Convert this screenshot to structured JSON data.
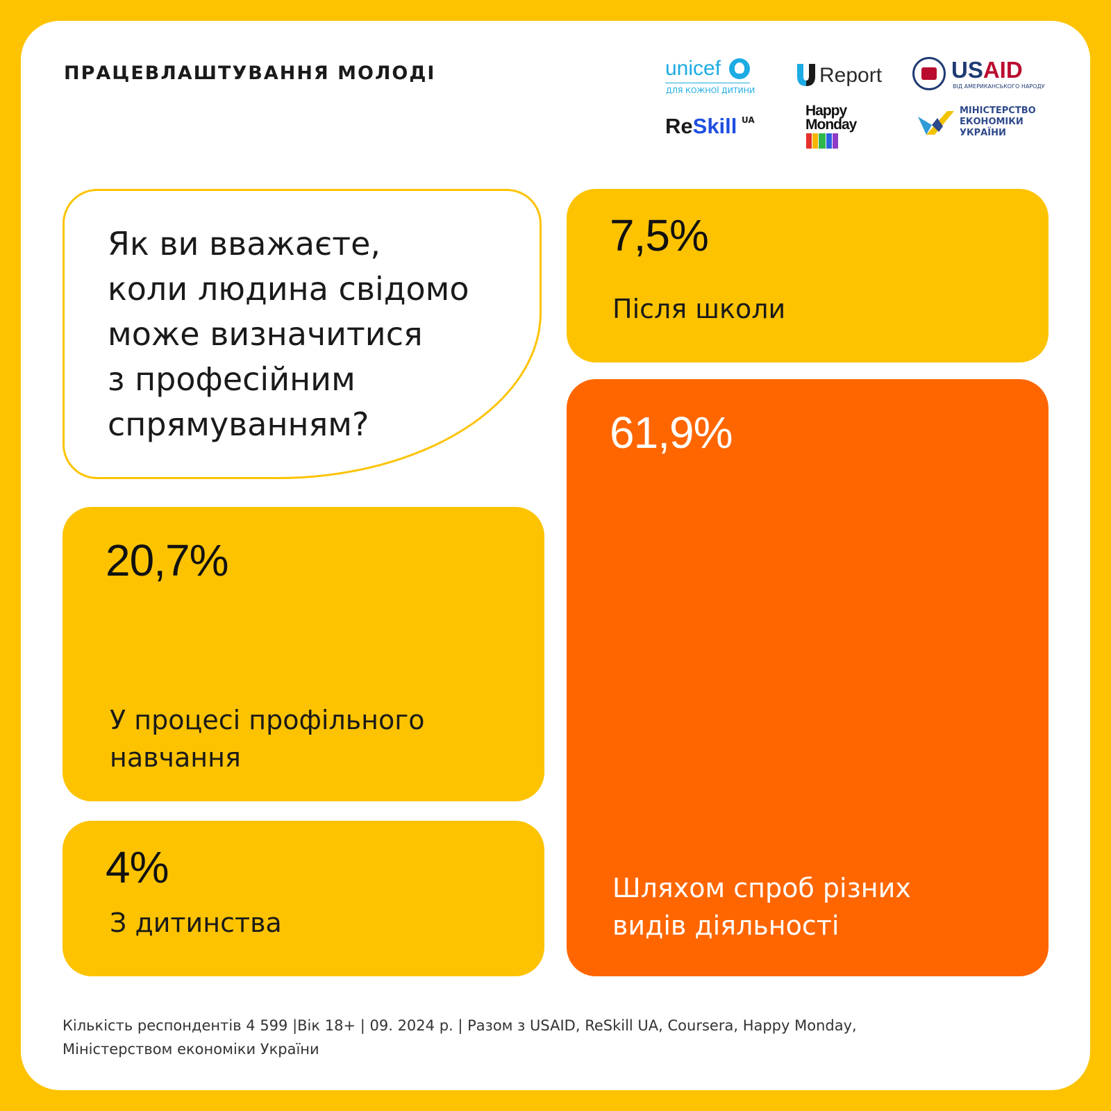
{
  "header": {
    "title": "ПРАЦЕВЛАШТУВАННЯ МОЛОДІ"
  },
  "logos": {
    "unicef": {
      "name": "unicef",
      "tagline": "ДЛЯ КОЖНОЇ ДИТИНИ"
    },
    "ureport": {
      "name": "Report"
    },
    "usaid": {
      "name_a": "US",
      "name_b": "AID",
      "tagline": "ВІД АМЕРИКАНСЬКОГО НАРОДУ"
    },
    "reskill": {
      "name_a": "Re",
      "name_b": "Skill",
      "superscript": "UA"
    },
    "happy_monday": {
      "line1": "Happy",
      "line2": "Monday"
    },
    "ministry": {
      "line1": "МІНІСТЕРСТВО",
      "line2": "ЕКОНОМІКИ",
      "line3": "УКРАЇНИ"
    }
  },
  "question": {
    "line1": "Як ви вважаєте,",
    "line2": "коли людина свідомо",
    "line3": "може визначитися",
    "line4": "з професійним",
    "line5": "спрямуванням?"
  },
  "chart_data": {
    "type": "table",
    "title": "",
    "categories": [
      "Після школи",
      "Шляхом спроб різних видів діяльності",
      "У процесі профільного навчання",
      "З дитинства"
    ],
    "values": [
      7.5,
      61.9,
      20.7,
      4
    ],
    "value_labels": [
      "7,5%",
      "61,9%",
      "20,7%",
      "4%"
    ],
    "label_lines": [
      [
        "Після школи"
      ],
      [
        "Шляхом спроб різних",
        "видів діяльності"
      ],
      [
        "У процесі профільного",
        "навчання"
      ],
      [
        "З дитинства"
      ]
    ],
    "colors": {
      "default": "#FDC300",
      "highlight": "#FF6600",
      "highlight_text": "#FFFFFF"
    }
  },
  "footer": {
    "line1": "Кількість респондентів 4 599 |Вік 18+ | 09. 2024 р. | Разом з USAID, ReSkill UA, Coursera, Happy Monday,",
    "line2": "Міністерством економіки України"
  },
  "colors": {
    "background": "#FDC300",
    "card": "#FFFFFF",
    "accent_orange": "#FF6600"
  }
}
